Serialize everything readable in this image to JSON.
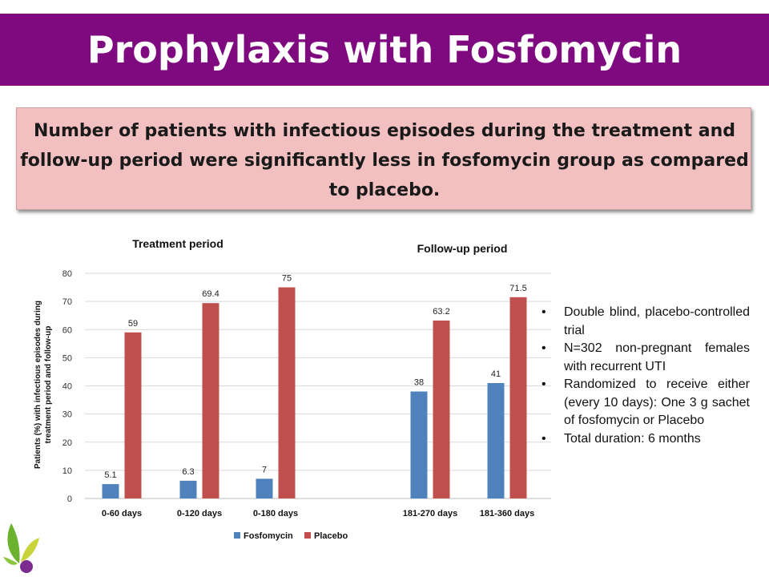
{
  "slide": {
    "title": "Prophylaxis with Fosfomycin",
    "callout": "Number of patients with infectious episodes during the treatment and follow-up period were significantly less in fosfomycin group as compared to placebo."
  },
  "chart_data": {
    "type": "bar",
    "group_titles": [
      "Treatment period",
      "Follow-up period"
    ],
    "categories": [
      "0-60 days",
      "0-120 days",
      "0-180 days",
      "181-270 days",
      "181-360 days"
    ],
    "series": [
      {
        "name": "Fosfomycin",
        "values": [
          5.1,
          6.3,
          7,
          38,
          41
        ],
        "labels": [
          "5.1",
          "6.3",
          "7",
          "38",
          "41"
        ],
        "color": "#4f81bd"
      },
      {
        "name": "Placebo",
        "values": [
          59,
          69.4,
          75,
          63.2,
          71.5
        ],
        "labels": [
          "59",
          "69.4",
          "75",
          "63.2",
          "71.5"
        ],
        "color": "#c0504d"
      }
    ],
    "ylabel_lines": [
      "Patients (%) with infectious episodes during",
      "treatment period and follow-up"
    ],
    "ylim": [
      0,
      80
    ],
    "yticks": [
      "0",
      "10",
      "20",
      "30",
      "40",
      "50",
      "60",
      "70",
      "80"
    ],
    "grid": true,
    "legend_position": "bottom"
  },
  "bullets": [
    "Double blind, placebo-controlled trial",
    "N=302 non-pregnant females with recurrent UTI",
    "Randomized to receive either (every 10 days): One 3 g sachet of fosfomycin or Placebo",
    "Total duration: 6 months"
  ]
}
